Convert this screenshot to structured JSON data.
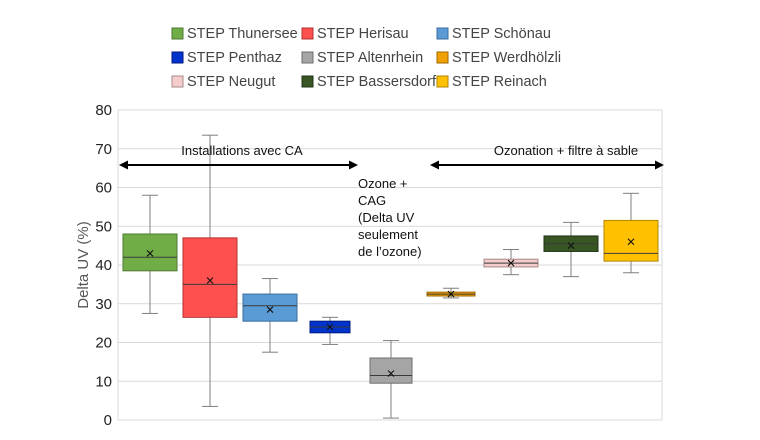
{
  "chart_data": {
    "type": "box",
    "ylabel": "Delta UV (%)",
    "ylim": [
      0,
      80
    ],
    "yticks": [
      0,
      10,
      20,
      30,
      40,
      50,
      60,
      70,
      80
    ],
    "grid": true,
    "legend_position": "top",
    "series": [
      {
        "name": "STEP Thunersee",
        "color": "#70ad47",
        "border": "#4e7a32",
        "min": 27.5,
        "q1": 38.5,
        "median": 42,
        "q3": 48,
        "max": 58,
        "mean": 43
      },
      {
        "name": "STEP Herisau",
        "color": "#ff5050",
        "border": "#b33030",
        "min": 3.5,
        "q1": 26.5,
        "median": 35,
        "q3": 47,
        "max": 73.5,
        "mean": 36
      },
      {
        "name": "STEP Schönau",
        "color": "#5b9bd5",
        "border": "#3a6d9e",
        "min": 17.5,
        "q1": 25.5,
        "median": 29.5,
        "q3": 32.5,
        "max": 36.5,
        "mean": 28.5
      },
      {
        "name": "STEP Penthaz",
        "color": "#0033cc",
        "border": "#001a80",
        "min": 19.5,
        "q1": 22.5,
        "median": 24,
        "q3": 25.5,
        "max": 26.5,
        "mean": 24
      },
      {
        "name": "STEP Altenrhein",
        "color": "#a5a5a5",
        "border": "#6e6e6e",
        "min": 0.5,
        "q1": 9.5,
        "median": 11.5,
        "q3": 16,
        "max": 20.5,
        "mean": 12
      },
      {
        "name": "STEP Werdhölzli",
        "color": "#f0a000",
        "border": "#a06a00",
        "min": 31.5,
        "q1": 32,
        "median": 32.5,
        "q3": 33,
        "max": 34,
        "mean": 32.5
      },
      {
        "name": "STEP Neugut",
        "color": "#f4cccc",
        "border": "#a88888",
        "min": 37.5,
        "q1": 39.5,
        "median": 40.5,
        "q3": 41.5,
        "max": 44,
        "mean": 40.5
      },
      {
        "name": "STEP Bassersdorf",
        "color": "#375623",
        "border": "#1f3314",
        "min": 37,
        "q1": 43.5,
        "median": 45.5,
        "q3": 47.5,
        "max": 51,
        "mean": 45
      },
      {
        "name": "STEP Reinach",
        "color": "#ffc000",
        "border": "#b38600",
        "min": 38,
        "q1": 41,
        "median": 43,
        "q3": 51.5,
        "max": 58.5,
        "mean": 46
      }
    ],
    "annotations": {
      "left_arrow_label": "Installations avec CA",
      "right_arrow_label": "Ozonation + filtre à sable",
      "middle_note": [
        "Ozone +",
        "CAG",
        "(Delta UV",
        "seulement",
        "de l’ozone)"
      ]
    }
  }
}
